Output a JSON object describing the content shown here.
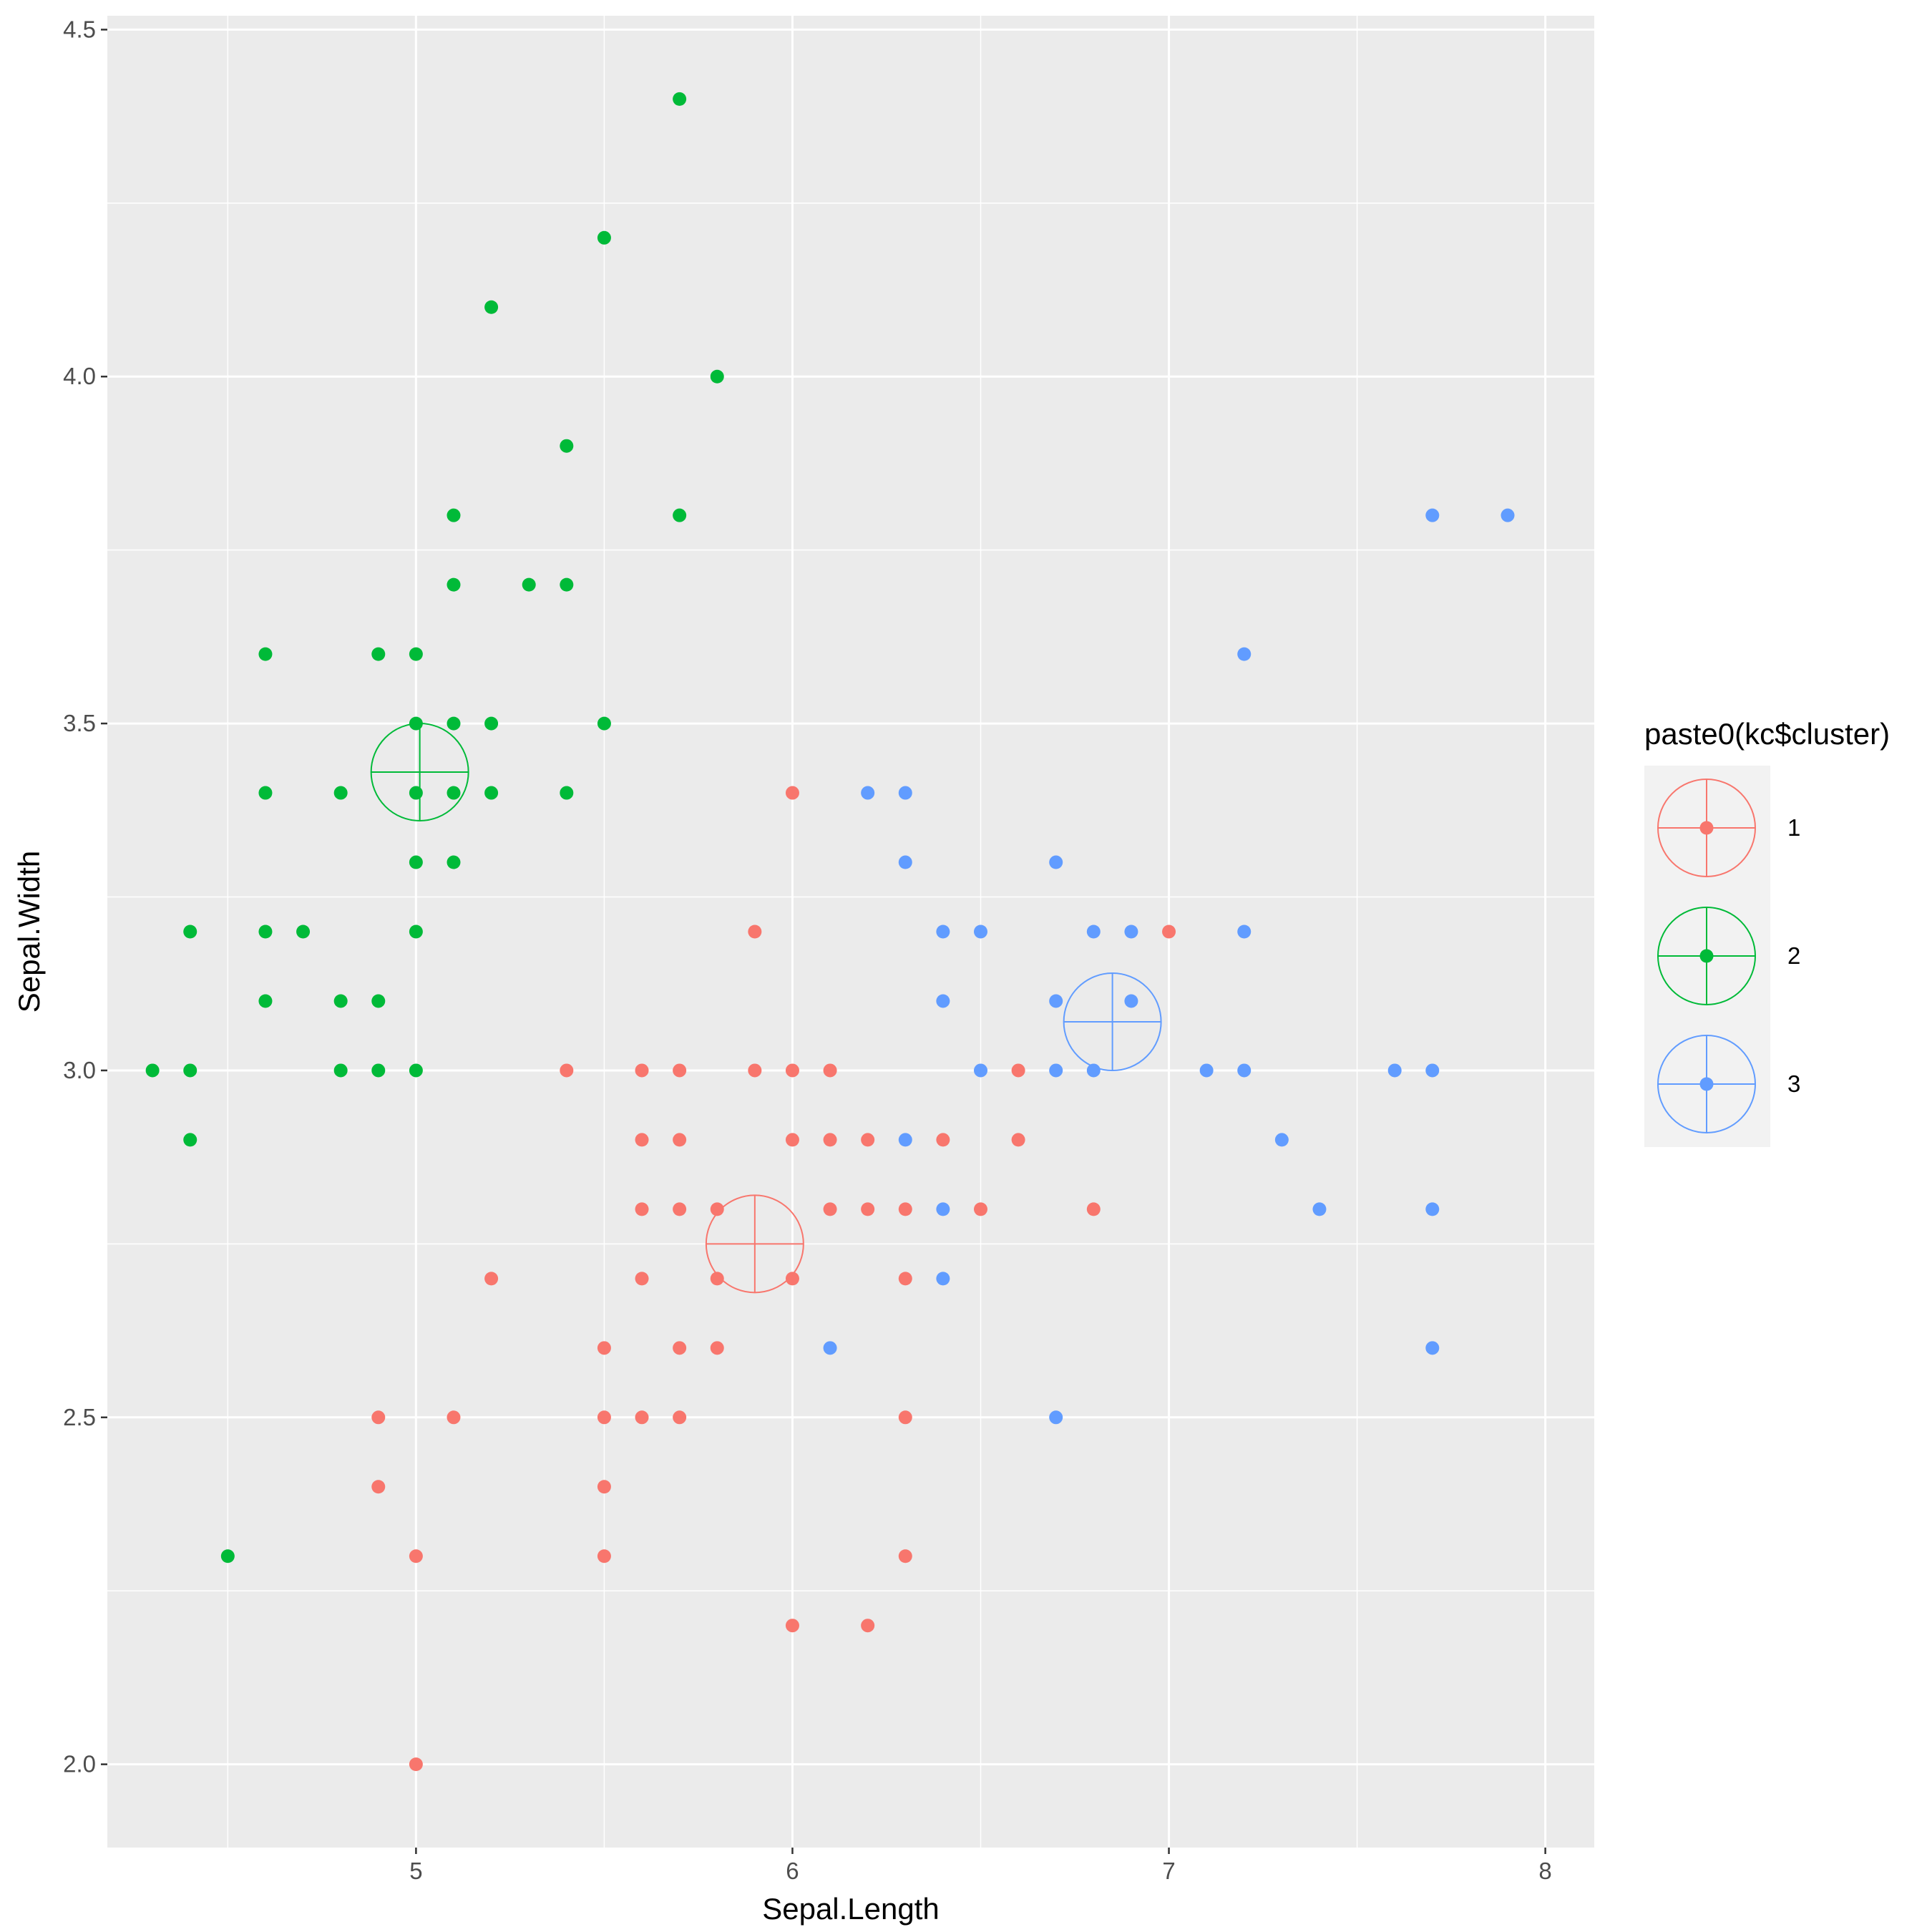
{
  "chart_data": {
    "type": "scatter",
    "title": "",
    "xlabel": "Sepal.Length",
    "ylabel": "Sepal.Width",
    "xlim": [
      4.18,
      8.13
    ],
    "ylim": [
      1.88,
      4.52
    ],
    "x_ticks": [
      5,
      6,
      7,
      8
    ],
    "x_tick_labels": [
      "5",
      "6",
      "7",
      "8"
    ],
    "y_ticks": [
      2.0,
      2.5,
      3.0,
      3.5,
      4.0,
      4.5
    ],
    "y_tick_labels": [
      "2.0",
      "2.5",
      "3.0",
      "3.5",
      "4.0",
      "4.5"
    ],
    "grid": true,
    "background": "#ebebeb",
    "legend": {
      "title": "paste0(kc$cluster)",
      "position": "right",
      "entries": [
        "1",
        "2",
        "3"
      ]
    },
    "series": [
      {
        "name": "1",
        "color": "#f8766d",
        "points": [
          [
            6.0,
            3.4
          ],
          [
            5.9,
            3.2
          ],
          [
            7.0,
            3.2
          ],
          [
            5.4,
            3.0
          ],
          [
            5.6,
            3.0
          ],
          [
            5.7,
            3.0
          ],
          [
            5.9,
            3.0
          ],
          [
            6.0,
            3.0
          ],
          [
            6.1,
            3.0
          ],
          [
            6.6,
            3.0
          ],
          [
            5.6,
            2.9
          ],
          [
            5.7,
            2.9
          ],
          [
            6.0,
            2.9
          ],
          [
            6.1,
            2.9
          ],
          [
            6.2,
            2.9
          ],
          [
            6.4,
            2.9
          ],
          [
            6.6,
            2.9
          ],
          [
            5.6,
            2.8
          ],
          [
            5.7,
            2.8
          ],
          [
            5.8,
            2.8
          ],
          [
            6.1,
            2.8
          ],
          [
            6.2,
            2.8
          ],
          [
            6.3,
            2.8
          ],
          [
            6.5,
            2.8
          ],
          [
            6.8,
            2.8
          ],
          [
            5.2,
            2.7
          ],
          [
            5.6,
            2.7
          ],
          [
            5.8,
            2.7
          ],
          [
            6.0,
            2.7
          ],
          [
            6.3,
            2.7
          ],
          [
            5.5,
            2.6
          ],
          [
            5.7,
            2.6
          ],
          [
            5.8,
            2.6
          ],
          [
            4.9,
            2.5
          ],
          [
            5.1,
            2.5
          ],
          [
            5.5,
            2.5
          ],
          [
            5.6,
            2.5
          ],
          [
            5.7,
            2.5
          ],
          [
            6.3,
            2.5
          ],
          [
            4.9,
            2.4
          ],
          [
            5.5,
            2.4
          ],
          [
            5.0,
            2.3
          ],
          [
            5.5,
            2.3
          ],
          [
            6.3,
            2.3
          ],
          [
            6.0,
            2.2
          ],
          [
            6.2,
            2.2
          ],
          [
            5.0,
            2.0
          ]
        ]
      },
      {
        "name": "2",
        "color": "#00ba38",
        "points": [
          [
            5.7,
            4.4
          ],
          [
            5.5,
            4.2
          ],
          [
            5.2,
            4.1
          ],
          [
            5.8,
            4.0
          ],
          [
            5.4,
            3.9
          ],
          [
            5.1,
            3.8
          ],
          [
            5.7,
            3.8
          ],
          [
            5.1,
            3.7
          ],
          [
            5.3,
            3.7
          ],
          [
            5.4,
            3.7
          ],
          [
            4.6,
            3.6
          ],
          [
            4.9,
            3.6
          ],
          [
            5.0,
            3.6
          ],
          [
            5.0,
            3.5
          ],
          [
            5.1,
            3.5
          ],
          [
            5.2,
            3.5
          ],
          [
            5.5,
            3.5
          ],
          [
            4.6,
            3.4
          ],
          [
            4.8,
            3.4
          ],
          [
            5.0,
            3.4
          ],
          [
            5.1,
            3.4
          ],
          [
            5.2,
            3.4
          ],
          [
            5.4,
            3.4
          ],
          [
            5.0,
            3.3
          ],
          [
            5.1,
            3.3
          ],
          [
            4.4,
            3.2
          ],
          [
            4.6,
            3.2
          ],
          [
            4.7,
            3.2
          ],
          [
            5.0,
            3.2
          ],
          [
            4.6,
            3.1
          ],
          [
            4.8,
            3.1
          ],
          [
            4.9,
            3.1
          ],
          [
            4.3,
            3.0
          ],
          [
            4.4,
            3.0
          ],
          [
            4.8,
            3.0
          ],
          [
            4.9,
            3.0
          ],
          [
            5.0,
            3.0
          ],
          [
            4.4,
            2.9
          ],
          [
            4.5,
            2.3
          ]
        ]
      },
      {
        "name": "3",
        "color": "#619cff",
        "points": [
          [
            7.7,
            3.8
          ],
          [
            7.9,
            3.8
          ],
          [
            7.2,
            3.6
          ],
          [
            6.2,
            3.4
          ],
          [
            6.3,
            3.4
          ],
          [
            6.3,
            3.3
          ],
          [
            6.7,
            3.3
          ],
          [
            6.4,
            3.2
          ],
          [
            6.5,
            3.2
          ],
          [
            6.8,
            3.2
          ],
          [
            6.9,
            3.2
          ],
          [
            7.2,
            3.2
          ],
          [
            6.4,
            3.1
          ],
          [
            6.7,
            3.1
          ],
          [
            6.9,
            3.1
          ],
          [
            6.5,
            3.0
          ],
          [
            6.7,
            3.0
          ],
          [
            6.8,
            3.0
          ],
          [
            7.1,
            3.0
          ],
          [
            7.2,
            3.0
          ],
          [
            7.6,
            3.0
          ],
          [
            7.7,
            3.0
          ],
          [
            6.3,
            2.9
          ],
          [
            7.3,
            2.9
          ],
          [
            6.4,
            2.8
          ],
          [
            7.4,
            2.8
          ],
          [
            7.7,
            2.8
          ],
          [
            6.4,
            2.7
          ],
          [
            6.1,
            2.6
          ],
          [
            7.7,
            2.6
          ],
          [
            6.7,
            2.5
          ]
        ]
      }
    ],
    "centers": [
      {
        "cluster": "1",
        "x": 5.9,
        "y": 2.75
      },
      {
        "cluster": "2",
        "x": 5.01,
        "y": 3.43
      },
      {
        "cluster": "3",
        "x": 6.85,
        "y": 3.07
      }
    ]
  }
}
